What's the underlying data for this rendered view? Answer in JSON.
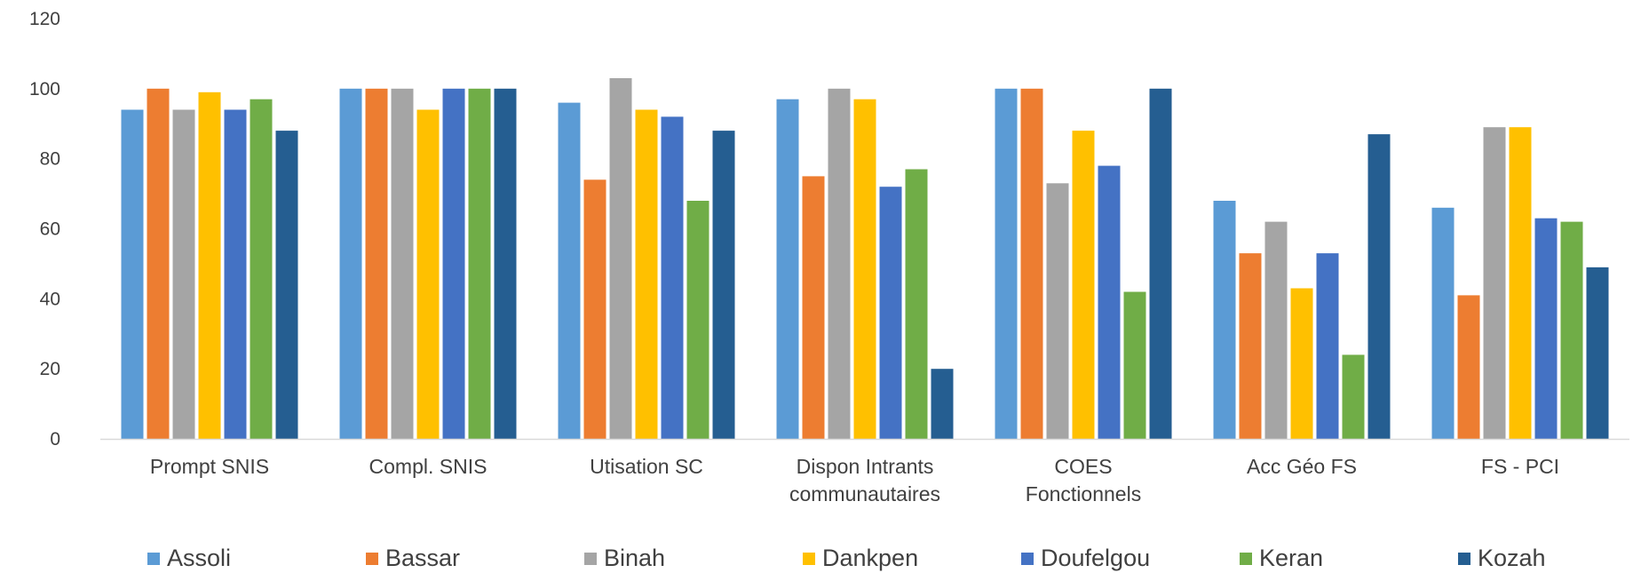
{
  "chart_data": {
    "type": "bar",
    "categories": [
      [
        "Prompt SNIS"
      ],
      [
        "Compl. SNIS"
      ],
      [
        "Utisation SC"
      ],
      [
        "Dispon Intrants",
        "communautaires"
      ],
      [
        "COES",
        "Fonctionnels"
      ],
      [
        "Acc Géo FS"
      ],
      [
        "FS - PCI"
      ]
    ],
    "series": [
      {
        "name": "Assoli",
        "color": "#5B9BD5",
        "values": [
          94,
          100,
          96,
          97,
          100,
          68,
          66
        ]
      },
      {
        "name": "Bassar",
        "color": "#ED7D31",
        "values": [
          100,
          100,
          74,
          75,
          100,
          53,
          41
        ]
      },
      {
        "name": "Binah",
        "color": "#A5A5A5",
        "values": [
          94,
          100,
          103,
          100,
          73,
          62,
          89
        ]
      },
      {
        "name": "Dankpen",
        "color": "#FFC000",
        "values": [
          99,
          94,
          94,
          97,
          88,
          43,
          89
        ]
      },
      {
        "name": "Doufelgou",
        "color": "#4472C4",
        "values": [
          94,
          100,
          92,
          72,
          78,
          53,
          63
        ]
      },
      {
        "name": "Keran",
        "color": "#70AD47",
        "values": [
          97,
          100,
          68,
          77,
          42,
          24,
          62
        ]
      },
      {
        "name": "Kozah",
        "color": "#255E91",
        "values": [
          88,
          100,
          88,
          20,
          100,
          87,
          49
        ]
      }
    ],
    "ylim": [
      0,
      120
    ],
    "yticks": [
      "0",
      "20",
      "40",
      "60",
      "80",
      "100",
      "120"
    ],
    "grid": false,
    "legend_position": "bottom"
  }
}
